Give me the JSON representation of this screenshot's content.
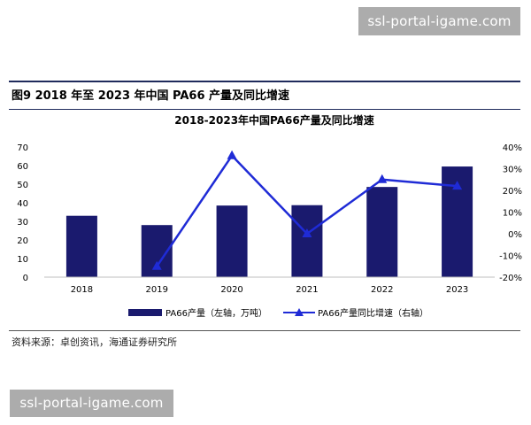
{
  "watermark": {
    "top": "ssl-portal-igame.com",
    "bottom": "ssl-portal-igame.com"
  },
  "figure": {
    "title": "图9  2018 年至 2023 年中国 PA66 产量及同比增速",
    "source": "资料来源：卓创资讯，海通证券研究所"
  },
  "chart_data": {
    "type": "bar",
    "title": "2018-2023年中国PA66产量及同比增速",
    "categories": [
      "2018",
      "2019",
      "2020",
      "2021",
      "2022",
      "2023"
    ],
    "series": [
      {
        "name": "PA66产量（左轴，万吨）",
        "type": "bar",
        "axis": "left",
        "values": [
          33,
          28,
          38.5,
          38.7,
          48.5,
          59.5
        ],
        "color": "#1a1a6e"
      },
      {
        "name": "PA66产量同比增速（右轴）",
        "type": "line",
        "axis": "right",
        "values": [
          null,
          -15,
          36,
          0,
          25,
          22
        ],
        "color": "#1f2bd6",
        "marker": "triangle"
      }
    ],
    "left_axis": {
      "ylim": [
        0,
        70
      ],
      "ticks": [
        "0",
        "10",
        "20",
        "30",
        "40",
        "50",
        "60",
        "70"
      ]
    },
    "right_axis": {
      "ylim": [
        -20,
        40
      ],
      "ticks": [
        "-20%",
        "-10%",
        "0%",
        "10%",
        "20%",
        "30%",
        "40%"
      ]
    },
    "grid": false,
    "legend_position": "bottom"
  }
}
